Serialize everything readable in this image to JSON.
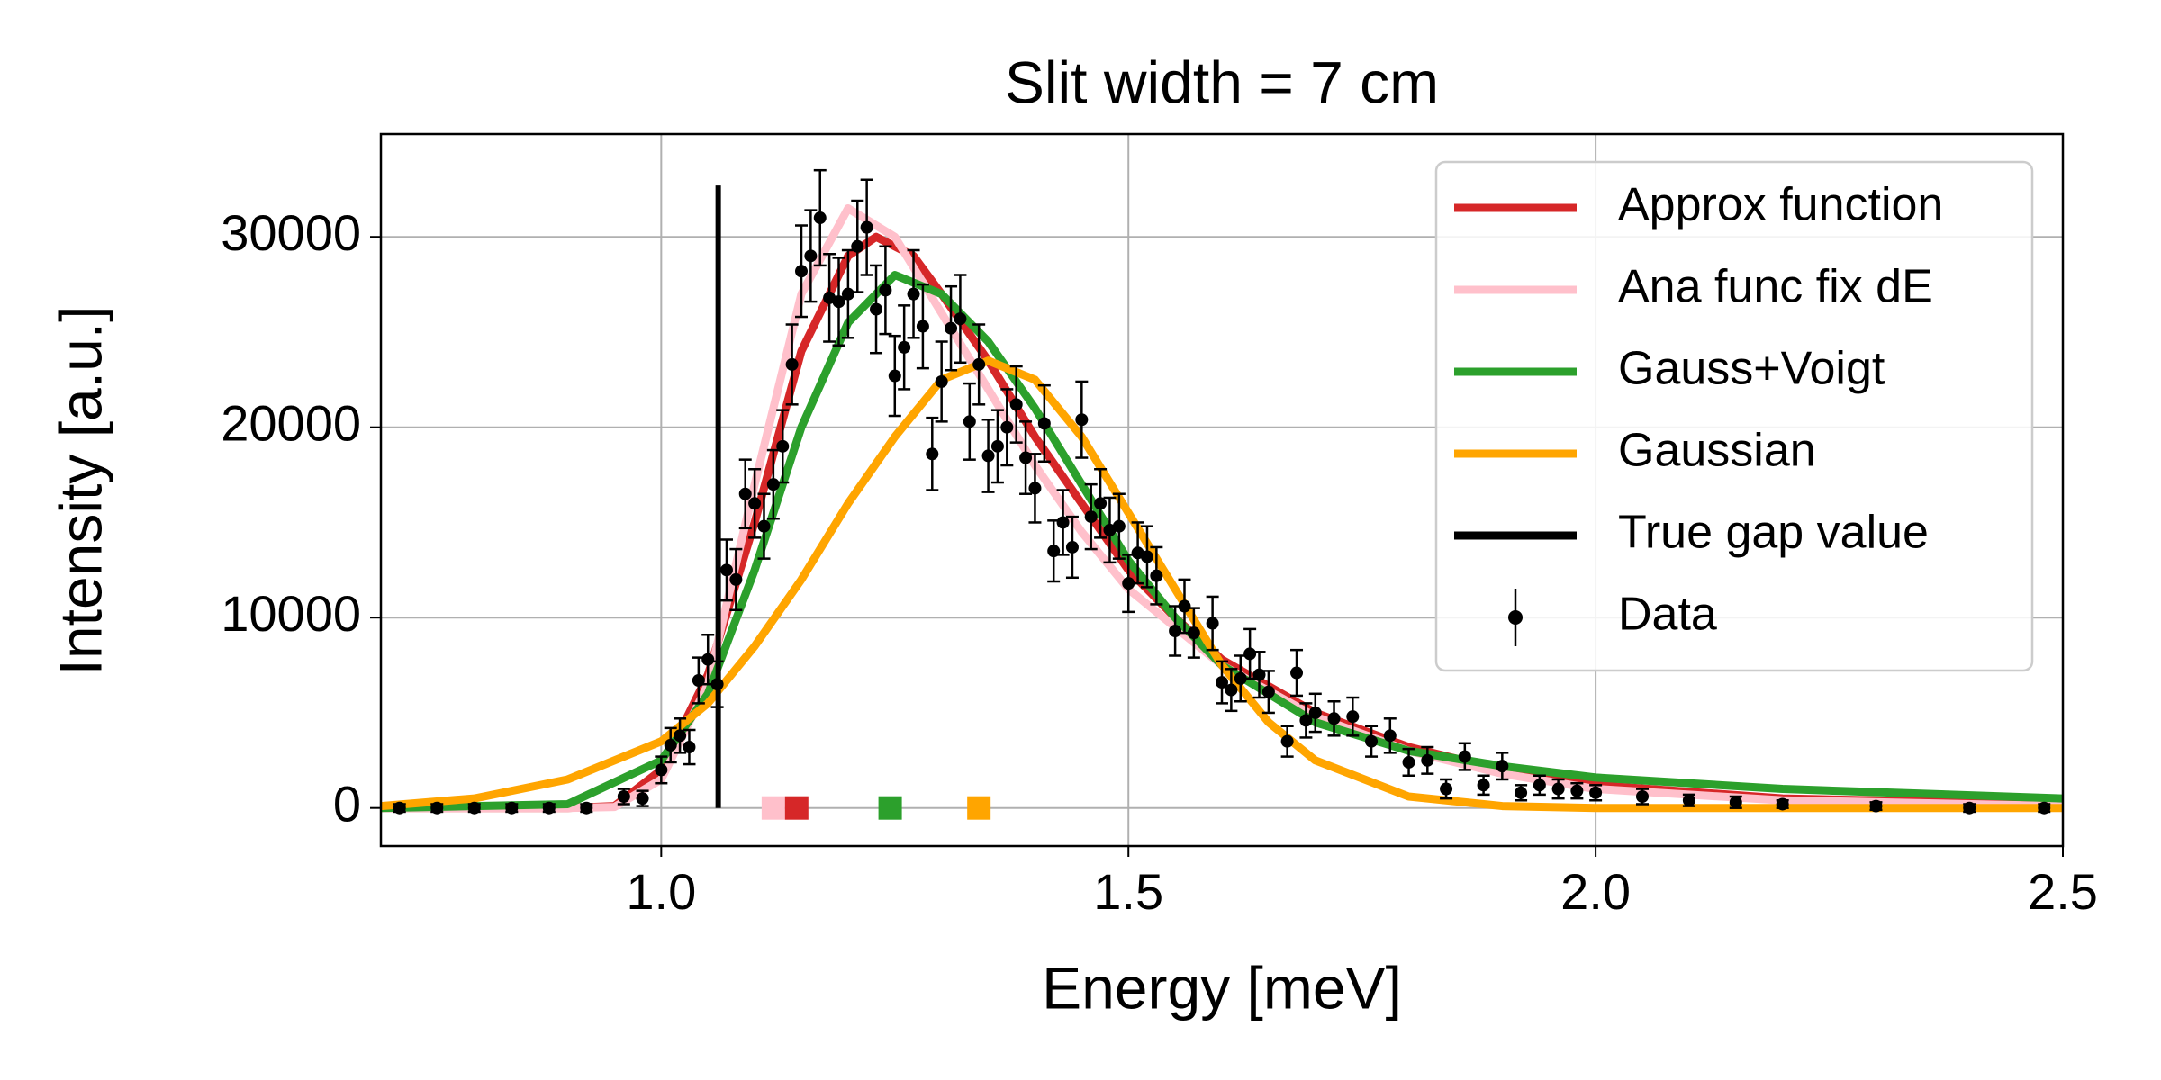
{
  "chart_data": {
    "type": "line",
    "title": "Slit width = 7 cm",
    "xlabel": "Energy [meV]",
    "ylabel": "Intensity [a.u.]",
    "xlim": [
      0.7,
      2.5
    ],
    "ylim": [
      -2000,
      35400
    ],
    "xticks": [
      {
        "value": 1,
        "label": "1.0"
      },
      1.5,
      {
        "value": 2,
        "label": "2.0"
      },
      2.5
    ],
    "yticks": [
      0,
      10000,
      20000,
      30000
    ],
    "grid": true,
    "legend": "upper right",
    "series": [
      {
        "name": "Approx function",
        "color": "#d62728",
        "x": [
          0.7,
          0.9,
          0.95,
          1.0,
          1.05,
          1.1,
          1.15,
          1.2,
          1.23,
          1.27,
          1.3,
          1.35,
          1.4,
          1.45,
          1.5,
          1.55,
          1.6,
          1.7,
          1.8,
          1.9,
          2.0,
          2.2,
          2.5
        ],
        "values": [
          0,
          0,
          100,
          2000,
          7000,
          15000,
          24000,
          29000,
          30000,
          29000,
          27000,
          23500,
          19500,
          16000,
          12500,
          10000,
          7800,
          5000,
          3200,
          2000,
          1200,
          500,
          200
        ]
      },
      {
        "name": "Ana func fix dE",
        "color": "#ffc0cb",
        "x": [
          0.7,
          0.9,
          0.95,
          1.0,
          1.05,
          1.1,
          1.15,
          1.2,
          1.25,
          1.3,
          1.35,
          1.4,
          1.45,
          1.5,
          1.6,
          1.7,
          1.8,
          1.9,
          2.0,
          2.2,
          2.5
        ],
        "values": [
          0,
          0,
          50,
          1500,
          6500,
          17000,
          27000,
          31500,
          30000,
          26000,
          22000,
          18000,
          14500,
          11500,
          7500,
          4800,
          3000,
          1800,
          1000,
          400,
          100
        ]
      },
      {
        "name": "Gauss+Voigt",
        "color": "#2ca02c",
        "x": [
          0.7,
          0.9,
          1.0,
          1.05,
          1.1,
          1.15,
          1.2,
          1.25,
          1.3,
          1.35,
          1.4,
          1.45,
          1.5,
          1.55,
          1.6,
          1.7,
          1.8,
          1.9,
          2.0,
          2.2,
          2.5
        ],
        "values": [
          0,
          200,
          2500,
          6000,
          12500,
          20000,
          25500,
          28000,
          27000,
          24500,
          21000,
          17000,
          13000,
          10000,
          7500,
          4500,
          3000,
          2200,
          1600,
          1000,
          500
        ]
      },
      {
        "name": "Gaussian",
        "color": "#ffa500",
        "x": [
          0.7,
          0.8,
          0.9,
          1.0,
          1.05,
          1.1,
          1.15,
          1.2,
          1.25,
          1.3,
          1.35,
          1.4,
          1.45,
          1.5,
          1.55,
          1.6,
          1.65,
          1.7,
          1.8,
          1.9,
          2.0,
          2.5
        ],
        "values": [
          100,
          500,
          1500,
          3500,
          5500,
          8500,
          12000,
          16000,
          19500,
          22500,
          23500,
          22500,
          19500,
          15500,
          11500,
          7500,
          4500,
          2500,
          600,
          100,
          0,
          0
        ]
      },
      {
        "name": "True gap value",
        "color": "#000000",
        "type": "vline",
        "x": 1.061,
        "values": [
          0,
          32700
        ]
      }
    ],
    "data": {
      "name": "Data",
      "color": "#000000",
      "x": [
        0.72,
        0.76,
        0.8,
        0.84,
        0.88,
        0.92,
        0.96,
        0.98,
        1.0,
        1.01,
        1.02,
        1.03,
        1.04,
        1.05,
        1.06,
        1.07,
        1.08,
        1.09,
        1.1,
        1.11,
        1.12,
        1.13,
        1.14,
        1.15,
        1.16,
        1.17,
        1.18,
        1.19,
        1.2,
        1.21,
        1.22,
        1.23,
        1.24,
        1.25,
        1.26,
        1.27,
        1.28,
        1.29,
        1.3,
        1.31,
        1.32,
        1.33,
        1.34,
        1.35,
        1.36,
        1.37,
        1.38,
        1.39,
        1.4,
        1.41,
        1.42,
        1.43,
        1.44,
        1.45,
        1.46,
        1.47,
        1.48,
        1.49,
        1.5,
        1.51,
        1.52,
        1.53,
        1.55,
        1.56,
        1.57,
        1.59,
        1.6,
        1.61,
        1.62,
        1.63,
        1.64,
        1.65,
        1.67,
        1.68,
        1.69,
        1.7,
        1.72,
        1.74,
        1.76,
        1.78,
        1.8,
        1.82,
        1.84,
        1.86,
        1.88,
        1.9,
        1.92,
        1.94,
        1.96,
        1.98,
        2.0,
        2.05,
        2.1,
        2.15,
        2.2,
        2.3,
        2.4,
        2.48
      ],
      "values": [
        0,
        0,
        0,
        0,
        0,
        0,
        600,
        500,
        2000,
        3300,
        3800,
        3200,
        6700,
        7800,
        6500,
        12500,
        12000,
        16500,
        16000,
        14800,
        17000,
        19000,
        23300,
        28200,
        29000,
        31000,
        26800,
        26600,
        27000,
        29500,
        30500,
        26200,
        27200,
        22700,
        24200,
        27000,
        25300,
        18600,
        22400,
        25200,
        25700,
        20300,
        23300,
        18500,
        19000,
        20000,
        21200,
        18400,
        16800,
        20200,
        13500,
        15000,
        13700,
        20400,
        15300,
        16000,
        14600,
        14800,
        11800,
        13400,
        13200,
        12200,
        9300,
        10600,
        9200,
        9700,
        6600,
        6200,
        6800,
        8100,
        7000,
        6100,
        3500,
        7100,
        4600,
        5000,
        4700,
        4800,
        3500,
        3800,
        2400,
        2500,
        1000,
        2700,
        1200,
        2200,
        800,
        1200,
        1000,
        900,
        800,
        600,
        400,
        300,
        200,
        100,
        0,
        0
      ],
      "err": [
        200,
        200,
        200,
        200,
        200,
        200,
        400,
        400,
        700,
        900,
        900,
        900,
        1200,
        1300,
        1200,
        1600,
        1600,
        1800,
        1800,
        1700,
        1800,
        1900,
        2100,
        2400,
        2400,
        2500,
        2300,
        2300,
        2300,
        2400,
        2500,
        2300,
        2300,
        2100,
        2200,
        2300,
        2200,
        1900,
        2100,
        2200,
        2300,
        2000,
        2100,
        1900,
        1900,
        2000,
        2000,
        1900,
        1800,
        2000,
        1600,
        1700,
        1600,
        2000,
        1700,
        1800,
        1700,
        1700,
        1500,
        1600,
        1600,
        1500,
        1300,
        1400,
        1300,
        1400,
        1100,
        1100,
        1200,
        1300,
        1200,
        1100,
        800,
        1200,
        900,
        1000,
        900,
        1000,
        800,
        900,
        700,
        700,
        500,
        700,
        500,
        700,
        400,
        500,
        500,
        400,
        400,
        400,
        300,
        300,
        200,
        200,
        200,
        200
      ]
    },
    "peak_markers": {
      "x": [
        1.12,
        1.145,
        1.245,
        1.34
      ],
      "colors": [
        "#ffc0cb",
        "#d62728",
        "#2ca02c",
        "#ffa500"
      ]
    }
  }
}
